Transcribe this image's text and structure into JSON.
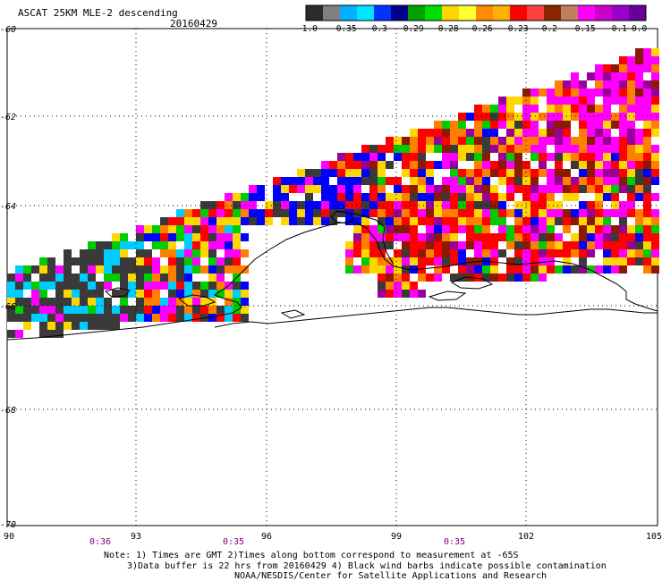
{
  "header": {
    "title": "ASCAT 25KM MLE-2 descending",
    "date": "20160429"
  },
  "colorbar": {
    "labels": [
      "-1.0",
      "-0.35",
      "-0.3",
      "-0.29",
      "-0.28",
      "-0.26",
      "-0.23",
      "-0.2",
      "-0.15",
      "-0.1",
      "0.0"
    ],
    "colors": [
      "#2b2b2b",
      "#808080",
      "#00b0ff",
      "#00e5ff",
      "#0033ff",
      "#00008b",
      "#00a000",
      "#00dd00",
      "#ffd700",
      "#ffff33",
      "#ff8c00",
      "#ffb000",
      "#ff0000",
      "#ff4040",
      "#8b2500",
      "#c08060",
      "#ff00ff",
      "#cc00cc",
      "#9900cc",
      "#660099"
    ]
  },
  "axes": {
    "lat_labels": [
      "-60",
      "-62",
      "-64",
      "-66",
      "-68",
      "-70"
    ],
    "lon_labels": [
      "90",
      "93",
      "96",
      "99",
      "102",
      "105"
    ],
    "time_labels": [
      "0:36",
      "0:35",
      "0:35"
    ]
  },
  "notes": [
    "Note: 1) Times are GMT 2)Times along bottom correspond to measurement at -65S",
    "3)Data buffer is 22 hrs from 20160429 4) Black wind barbs indicate possible contamination",
    "NOAA/NESDIS/Center for Satellite Applications and Research"
  ],
  "colors": {
    "dark": "#3a3a3a",
    "cyan": "#00ccff",
    "blue": "#0000ff",
    "green": "#00cc00",
    "yellow": "#ffd700",
    "orange": "#ff8000",
    "red": "#ff0000",
    "brown": "#8b1a00",
    "magenta": "#ff00ff",
    "purple": "#990099"
  }
}
